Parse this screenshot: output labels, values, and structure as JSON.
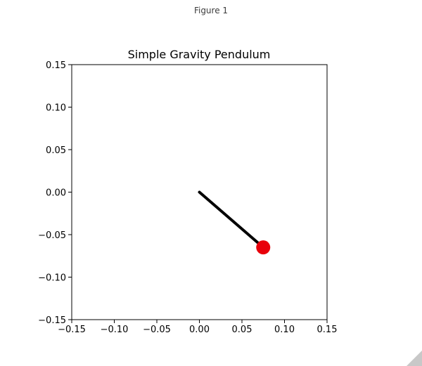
{
  "window": {
    "title": "Figure 1"
  },
  "chart_data": {
    "type": "scatter",
    "title": "Simple Gravity Pendulum",
    "xlabel": "",
    "ylabel": "",
    "xlim": [
      -0.15,
      0.15
    ],
    "ylim": [
      -0.15,
      0.15
    ],
    "xticks": [
      -0.15,
      -0.1,
      -0.05,
      0.0,
      0.05,
      0.1,
      0.15
    ],
    "yticks": [
      -0.15,
      -0.1,
      -0.05,
      0.0,
      0.05,
      0.1,
      0.15
    ],
    "xtick_labels": [
      "−0.15",
      "−0.10",
      "−0.05",
      "0.00",
      "0.05",
      "0.10",
      "0.15"
    ],
    "ytick_labels": [
      "−0.15",
      "−0.10",
      "−0.05",
      "0.00",
      "0.05",
      "0.10",
      "0.15"
    ],
    "grid": false,
    "pivot": {
      "x": 0.0,
      "y": 0.0
    },
    "bob": {
      "x": 0.075,
      "y": -0.065
    },
    "rod_color": "#000000",
    "bob_color": "#e8000b"
  }
}
